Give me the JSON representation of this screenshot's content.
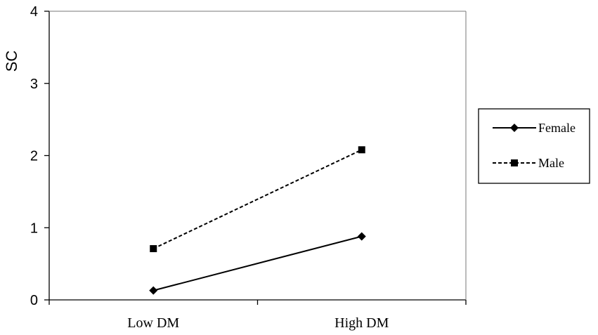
{
  "chart_data": {
    "type": "line",
    "title": "",
    "xlabel": "",
    "ylabel": "SC",
    "categories": [
      "Low DM",
      "High DM"
    ],
    "ylim": [
      0,
      4
    ],
    "yticks": [
      "0",
      "1",
      "2",
      "3",
      "4"
    ],
    "grid": false,
    "legend": "right",
    "series": [
      {
        "name": "Female",
        "values": [
          0.13,
          0.88
        ],
        "marker": "diamond",
        "line": "solid",
        "color": "#000000"
      },
      {
        "name": "Male",
        "values": [
          0.71,
          2.08
        ],
        "marker": "square",
        "line": "dashed",
        "color": "#000000"
      }
    ]
  }
}
